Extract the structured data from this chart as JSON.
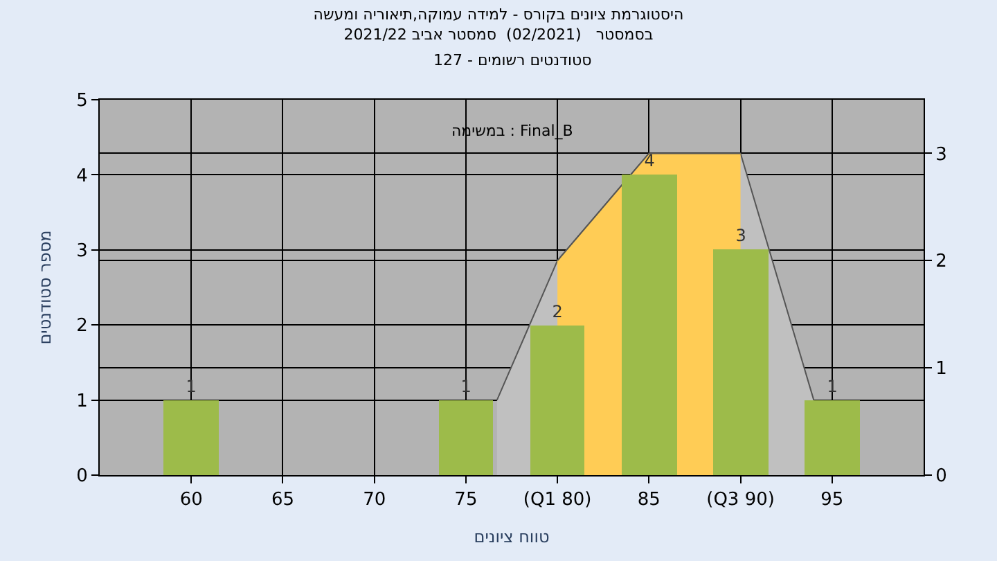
{
  "chart_data": {
    "type": "bar",
    "title": "היסטוגרמת ציונים בקורס - למידה עמוקה,תיאוריה ומעשה",
    "subtitle": "בסמסטר   (02/2021)  סמסטר אביב 2021/22",
    "xlabel": "טווח ציונים",
    "ylabel": "מספר סטודנטים",
    "annotations": [
      "סטודנטים רשומים - 127",
      "במשימה : Final_B"
    ],
    "x": [
      60,
      65,
      70,
      75,
      80,
      85,
      90,
      95
    ],
    "xlim": [
      55,
      100
    ],
    "xticks": [
      60,
      65,
      70,
      75,
      {
        "value": 80,
        "label": "(Q1 80)"
      },
      85,
      {
        "value": 90,
        "label": "(Q3 90)"
      },
      95
    ],
    "ylim": [
      0,
      5
    ],
    "yticks": [
      0,
      1,
      2,
      3,
      4,
      5
    ],
    "y2lim": [
      0,
      3.5
    ],
    "y2ticks": [
      0,
      1,
      2,
      3
    ],
    "grid": true,
    "series": [
      {
        "type": "area",
        "axis": "y2",
        "color": "#c0c0c0",
        "x": [
          76.7,
          80,
          85,
          90,
          94
        ],
        "values": [
          0.7,
          2,
          3,
          3,
          0.7
        ]
      },
      {
        "type": "area",
        "axis": "y2",
        "color": "#ffcc55",
        "x": [
          80,
          85,
          90
        ],
        "values": [
          2,
          3,
          3
        ]
      },
      {
        "color": "#9dbb4a",
        "values": [
          1,
          0,
          0,
          1,
          2,
          4,
          3,
          1
        ],
        "value_labels": [
          "1",
          null,
          null,
          "1",
          "2",
          "4",
          "3",
          "1"
        ]
      }
    ]
  }
}
